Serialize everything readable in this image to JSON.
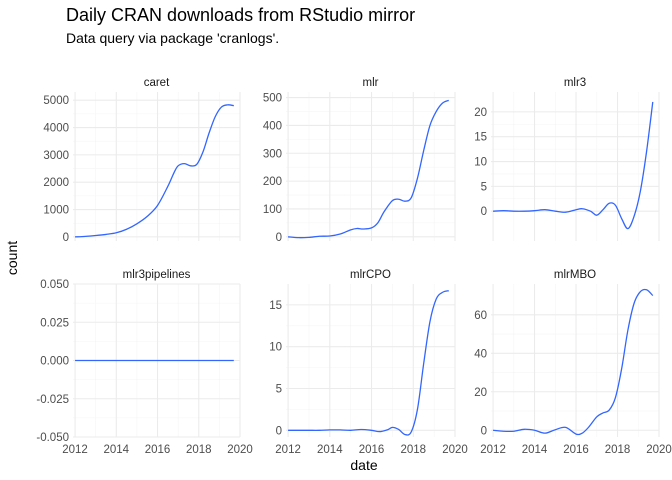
{
  "chart_data": {
    "type": "line",
    "title": "Daily CRAN downloads from RStudio mirror",
    "subtitle": "Data query via package 'cranlogs'.",
    "xlabel": "date",
    "ylabel": "count",
    "line_color": "#3366ff",
    "grid": true,
    "x_ticks": [
      2012,
      2014,
      2016,
      2018,
      2020
    ],
    "xlim": [
      2011.9,
      2020.0
    ],
    "panels": [
      {
        "name": "caret",
        "ylim": [
          -150,
          5300
        ],
        "y_ticks": [
          0,
          1000,
          2000,
          3000,
          4000,
          5000
        ],
        "y_tick_labels": [
          "0",
          "1000",
          "2000",
          "3000",
          "4000",
          "5000"
        ],
        "x": [
          2012.0,
          2012.5,
          2013.0,
          2013.5,
          2014.0,
          2014.5,
          2015.0,
          2015.5,
          2016.0,
          2016.5,
          2016.8,
          2017.0,
          2017.3,
          2017.6,
          2017.9,
          2018.2,
          2018.5,
          2018.8,
          2019.1,
          2019.4,
          2019.7
        ],
        "y": [
          0,
          20,
          50,
          90,
          150,
          280,
          480,
          750,
          1150,
          1850,
          2350,
          2600,
          2680,
          2600,
          2650,
          3100,
          3800,
          4400,
          4750,
          4830,
          4800
        ]
      },
      {
        "name": "mlr",
        "ylim": [
          -15,
          520
        ],
        "y_ticks": [
          0,
          100,
          200,
          300,
          400,
          500
        ],
        "y_tick_labels": [
          "0",
          "100",
          "200",
          "300",
          "400",
          "500"
        ],
        "x": [
          2012.0,
          2012.5,
          2013.0,
          2013.5,
          2014.0,
          2014.5,
          2015.0,
          2015.3,
          2015.6,
          2016.0,
          2016.3,
          2016.6,
          2017.0,
          2017.3,
          2017.6,
          2017.9,
          2018.2,
          2018.5,
          2018.8,
          2019.1,
          2019.4,
          2019.7
        ],
        "y": [
          0,
          -3,
          -2,
          2,
          3,
          10,
          25,
          30,
          28,
          32,
          50,
          90,
          130,
          135,
          128,
          140,
          210,
          310,
          400,
          450,
          480,
          490
        ]
      },
      {
        "name": "mlr3",
        "ylim": [
          -6,
          24
        ],
        "y_ticks": [
          0,
          5,
          10,
          15,
          20
        ],
        "y_tick_labels": [
          "0",
          "5",
          "10",
          "15",
          "20"
        ],
        "x": [
          2012.0,
          2012.5,
          2013.0,
          2013.5,
          2014.0,
          2014.5,
          2015.0,
          2015.5,
          2016.0,
          2016.3,
          2016.7,
          2017.0,
          2017.3,
          2017.6,
          2017.9,
          2018.2,
          2018.5,
          2018.8,
          2019.1,
          2019.4,
          2019.7
        ],
        "y": [
          0,
          0.1,
          0,
          0,
          0.1,
          0.3,
          0,
          -0.2,
          0.3,
          0.5,
          0,
          -0.8,
          0.3,
          1.6,
          1.2,
          -1.5,
          -3.5,
          -1.0,
          4.0,
          12.0,
          22.0
        ]
      },
      {
        "name": "mlr3pipelines",
        "ylim": [
          -0.05,
          0.05
        ],
        "y_ticks": [
          -0.05,
          -0.025,
          0,
          0.025,
          0.05
        ],
        "y_tick_labels": [
          "-0.050",
          "-0.025",
          "0.000",
          "0.025",
          "0.050"
        ],
        "x": [
          2012.0,
          2019.7
        ],
        "y": [
          0,
          0
        ]
      },
      {
        "name": "mlrCPO",
        "ylim": [
          -0.8,
          17.5
        ],
        "y_ticks": [
          0,
          5,
          10,
          15
        ],
        "y_tick_labels": [
          "0",
          "5",
          "10",
          "15"
        ],
        "x": [
          2012.0,
          2012.5,
          2013.0,
          2013.5,
          2014.0,
          2014.5,
          2015.0,
          2015.5,
          2016.0,
          2016.4,
          2016.8,
          2017.0,
          2017.3,
          2017.6,
          2017.9,
          2018.2,
          2018.5,
          2018.8,
          2019.1,
          2019.4,
          2019.7
        ],
        "y": [
          0,
          0,
          0,
          0,
          0.05,
          0.05,
          0,
          0.1,
          0,
          -0.15,
          0.1,
          0.35,
          0.1,
          -0.5,
          -0.2,
          2.5,
          8.0,
          13.0,
          15.7,
          16.5,
          16.7
        ]
      },
      {
        "name": "mlrMBO",
        "ylim": [
          -3.5,
          76
        ],
        "y_ticks": [
          0,
          20,
          40,
          60
        ],
        "y_tick_labels": [
          "0",
          "20",
          "40",
          "60"
        ],
        "x": [
          2012.0,
          2012.5,
          2013.0,
          2013.5,
          2014.0,
          2014.5,
          2015.0,
          2015.5,
          2016.0,
          2016.3,
          2016.6,
          2017.0,
          2017.3,
          2017.6,
          2017.9,
          2018.2,
          2018.5,
          2018.8,
          2019.1,
          2019.4,
          2019.7
        ],
        "y": [
          0,
          -0.5,
          -0.5,
          0.5,
          0,
          -1.5,
          0.3,
          1.5,
          -2.0,
          -1.5,
          1.5,
          7.0,
          9.0,
          10.5,
          17.0,
          32.0,
          52.0,
          66.0,
          72.0,
          73.0,
          70.0
        ]
      }
    ]
  }
}
